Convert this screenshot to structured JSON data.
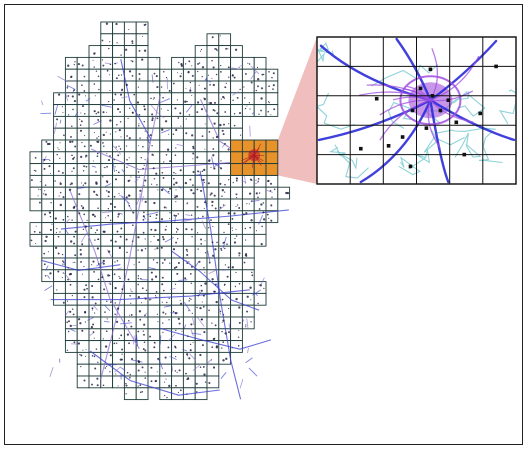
{
  "map": {
    "tile_outline_color": "#1f3b3b",
    "road_color": "#3a3fd0",
    "road_secondary_color": "#8a6fd0",
    "settlement_color": "#1a1a3a",
    "highlight_fill_color": "#e8922a",
    "highlight_center_color": "#b5162a",
    "inset_bg_color": "#ffffff",
    "inset_grid_color": "#111111",
    "inset_boundary_color": "#8fd3d8",
    "inset_major_road_color": "#2b2bd9",
    "inset_secondary_road_color": "#a04de0",
    "inset_city_color": "#9b3fd6",
    "callout_fill_color": "#f0b7b7"
  }
}
